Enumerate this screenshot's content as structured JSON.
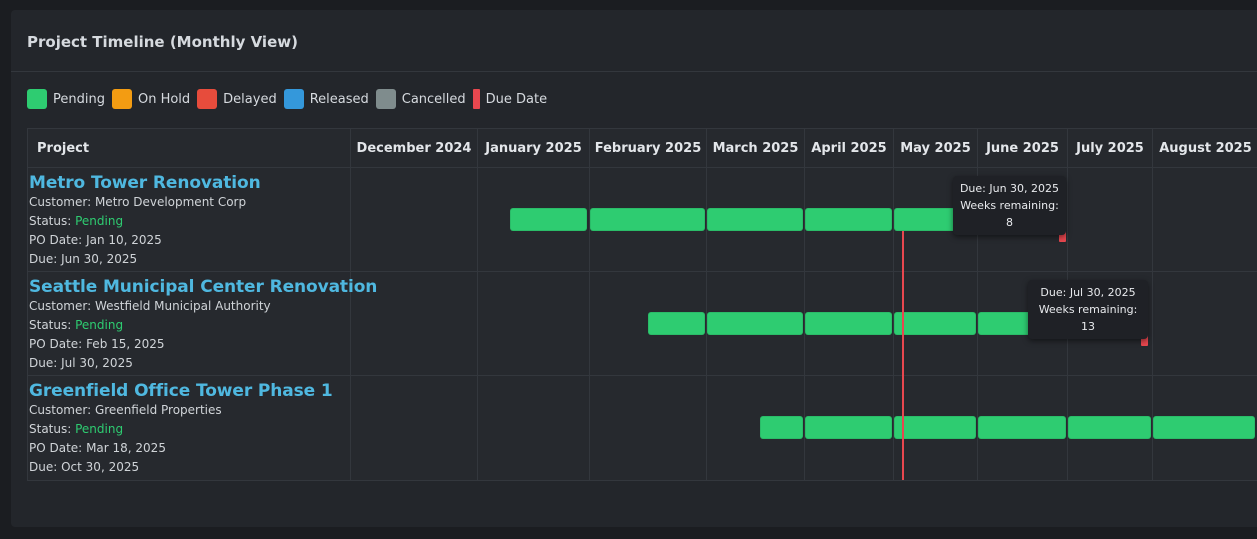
{
  "panel": {
    "title": "Project Timeline (Monthly View)"
  },
  "legend": [
    {
      "label": "Pending",
      "color": "#2ecc71"
    },
    {
      "label": "On Hold",
      "color": "#f39c12"
    },
    {
      "label": "Delayed",
      "color": "#e74c3c"
    },
    {
      "label": "Released",
      "color": "#3498db"
    },
    {
      "label": "Cancelled",
      "color": "#7f8c8d"
    },
    {
      "label": "Due Date",
      "color": "#e8474f"
    }
  ],
  "table": {
    "project_header": "Project",
    "months": [
      "December 2024",
      "January 2025",
      "February 2025",
      "March 2025",
      "April 2025",
      "May 2025",
      "June 2025",
      "July 2025",
      "August 2025"
    ]
  },
  "projects": [
    {
      "name": "Metro Tower Renovation",
      "customer_label": "Customer:",
      "customer": "Metro Development Corp",
      "status_label": "Status:",
      "status": "Pending",
      "po_label": "PO Date:",
      "po_date": "Jan 10, 2025",
      "due_label": "Due:",
      "due": "Jun 30, 2025",
      "tooltip": {
        "due": "Due: Jun 30, 2025",
        "weeks": "Weeks remaining: 8"
      }
    },
    {
      "name": "Seattle Municipal Center Renovation",
      "customer_label": "Customer:",
      "customer": "Westfield Municipal Authority",
      "status_label": "Status:",
      "status": "Pending",
      "po_label": "PO Date:",
      "po_date": "Feb 15, 2025",
      "due_label": "Due:",
      "due": "Jul 30, 2025",
      "tooltip": {
        "due": "Due: Jul 30, 2025",
        "weeks": "Weeks remaining: 13"
      }
    },
    {
      "name": "Greenfield Office Tower Phase 1",
      "customer_label": "Customer:",
      "customer": "Greenfield Properties",
      "status_label": "Status:",
      "status": "Pending",
      "po_label": "PO Date:",
      "po_date": "Mar 18, 2025",
      "due_label": "Due:",
      "due": "Oct 30, 2025"
    }
  ]
}
